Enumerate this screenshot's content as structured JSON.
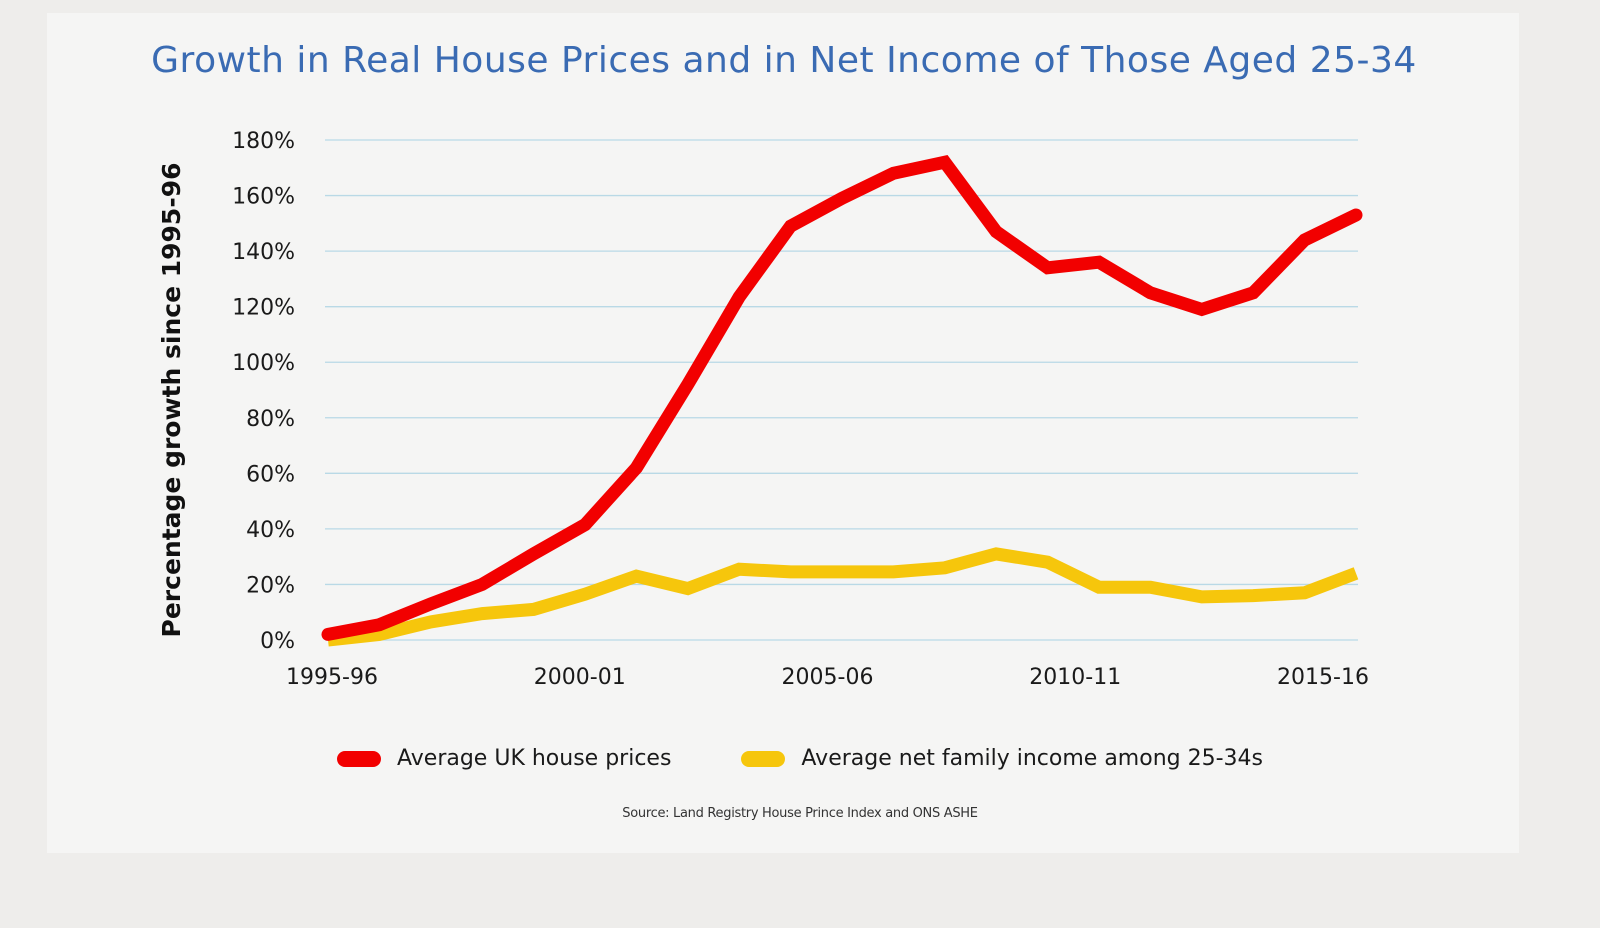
{
  "chart_data": {
    "type": "line",
    "title": "Growth in Real House Prices and in Net Income of Those Aged 25-34",
    "xlabel": "",
    "ylabel": "Percentage growth since 1995-96",
    "x": [
      "1995-96",
      "1996-97",
      "1997-98",
      "1998-99",
      "1999-00",
      "2000-01",
      "2001-02",
      "2002-03",
      "2003-04",
      "2004-05",
      "2005-06",
      "2006-07",
      "2007-08",
      "2008-09",
      "2009-10",
      "2010-11",
      "2011-12",
      "2012-13",
      "2013-14",
      "2014-15",
      "2015-16"
    ],
    "x_tick_labels": [
      "1995-96",
      "2000-01",
      "2005-06",
      "2010-11",
      "2015-16"
    ],
    "y_tick_labels": [
      "0%",
      "20%",
      "40%",
      "60%",
      "80%",
      "100%",
      "120%",
      "140%",
      "160%",
      "180%"
    ],
    "y_ticks": [
      0,
      20,
      40,
      60,
      80,
      100,
      120,
      140,
      160,
      180
    ],
    "ylim": [
      0,
      180
    ],
    "grid": true,
    "legend_position": "bottom-center",
    "series": [
      {
        "name": "Average UK house prices",
        "color": "#f20000",
        "values": [
          2,
          5.5,
          13,
          20,
          31,
          41.5,
          62,
          92,
          123.5,
          149,
          159,
          168,
          172,
          147,
          134,
          136,
          125,
          119,
          125,
          144,
          153
        ]
      },
      {
        "name": "Average net family income among 25-34s",
        "color": "#f6c60c",
        "values": [
          0,
          2,
          6.5,
          9.5,
          11,
          16.5,
          23,
          18.5,
          25.5,
          24.5,
          24.5,
          24.5,
          26,
          31,
          28,
          19,
          19,
          15.5,
          16,
          17,
          24
        ]
      }
    ],
    "source": "Source: Land Registry House Prince Index and ONS ASHE"
  },
  "colors": {
    "title": "#3a6bb3",
    "gridline": "#b9d9e6"
  }
}
